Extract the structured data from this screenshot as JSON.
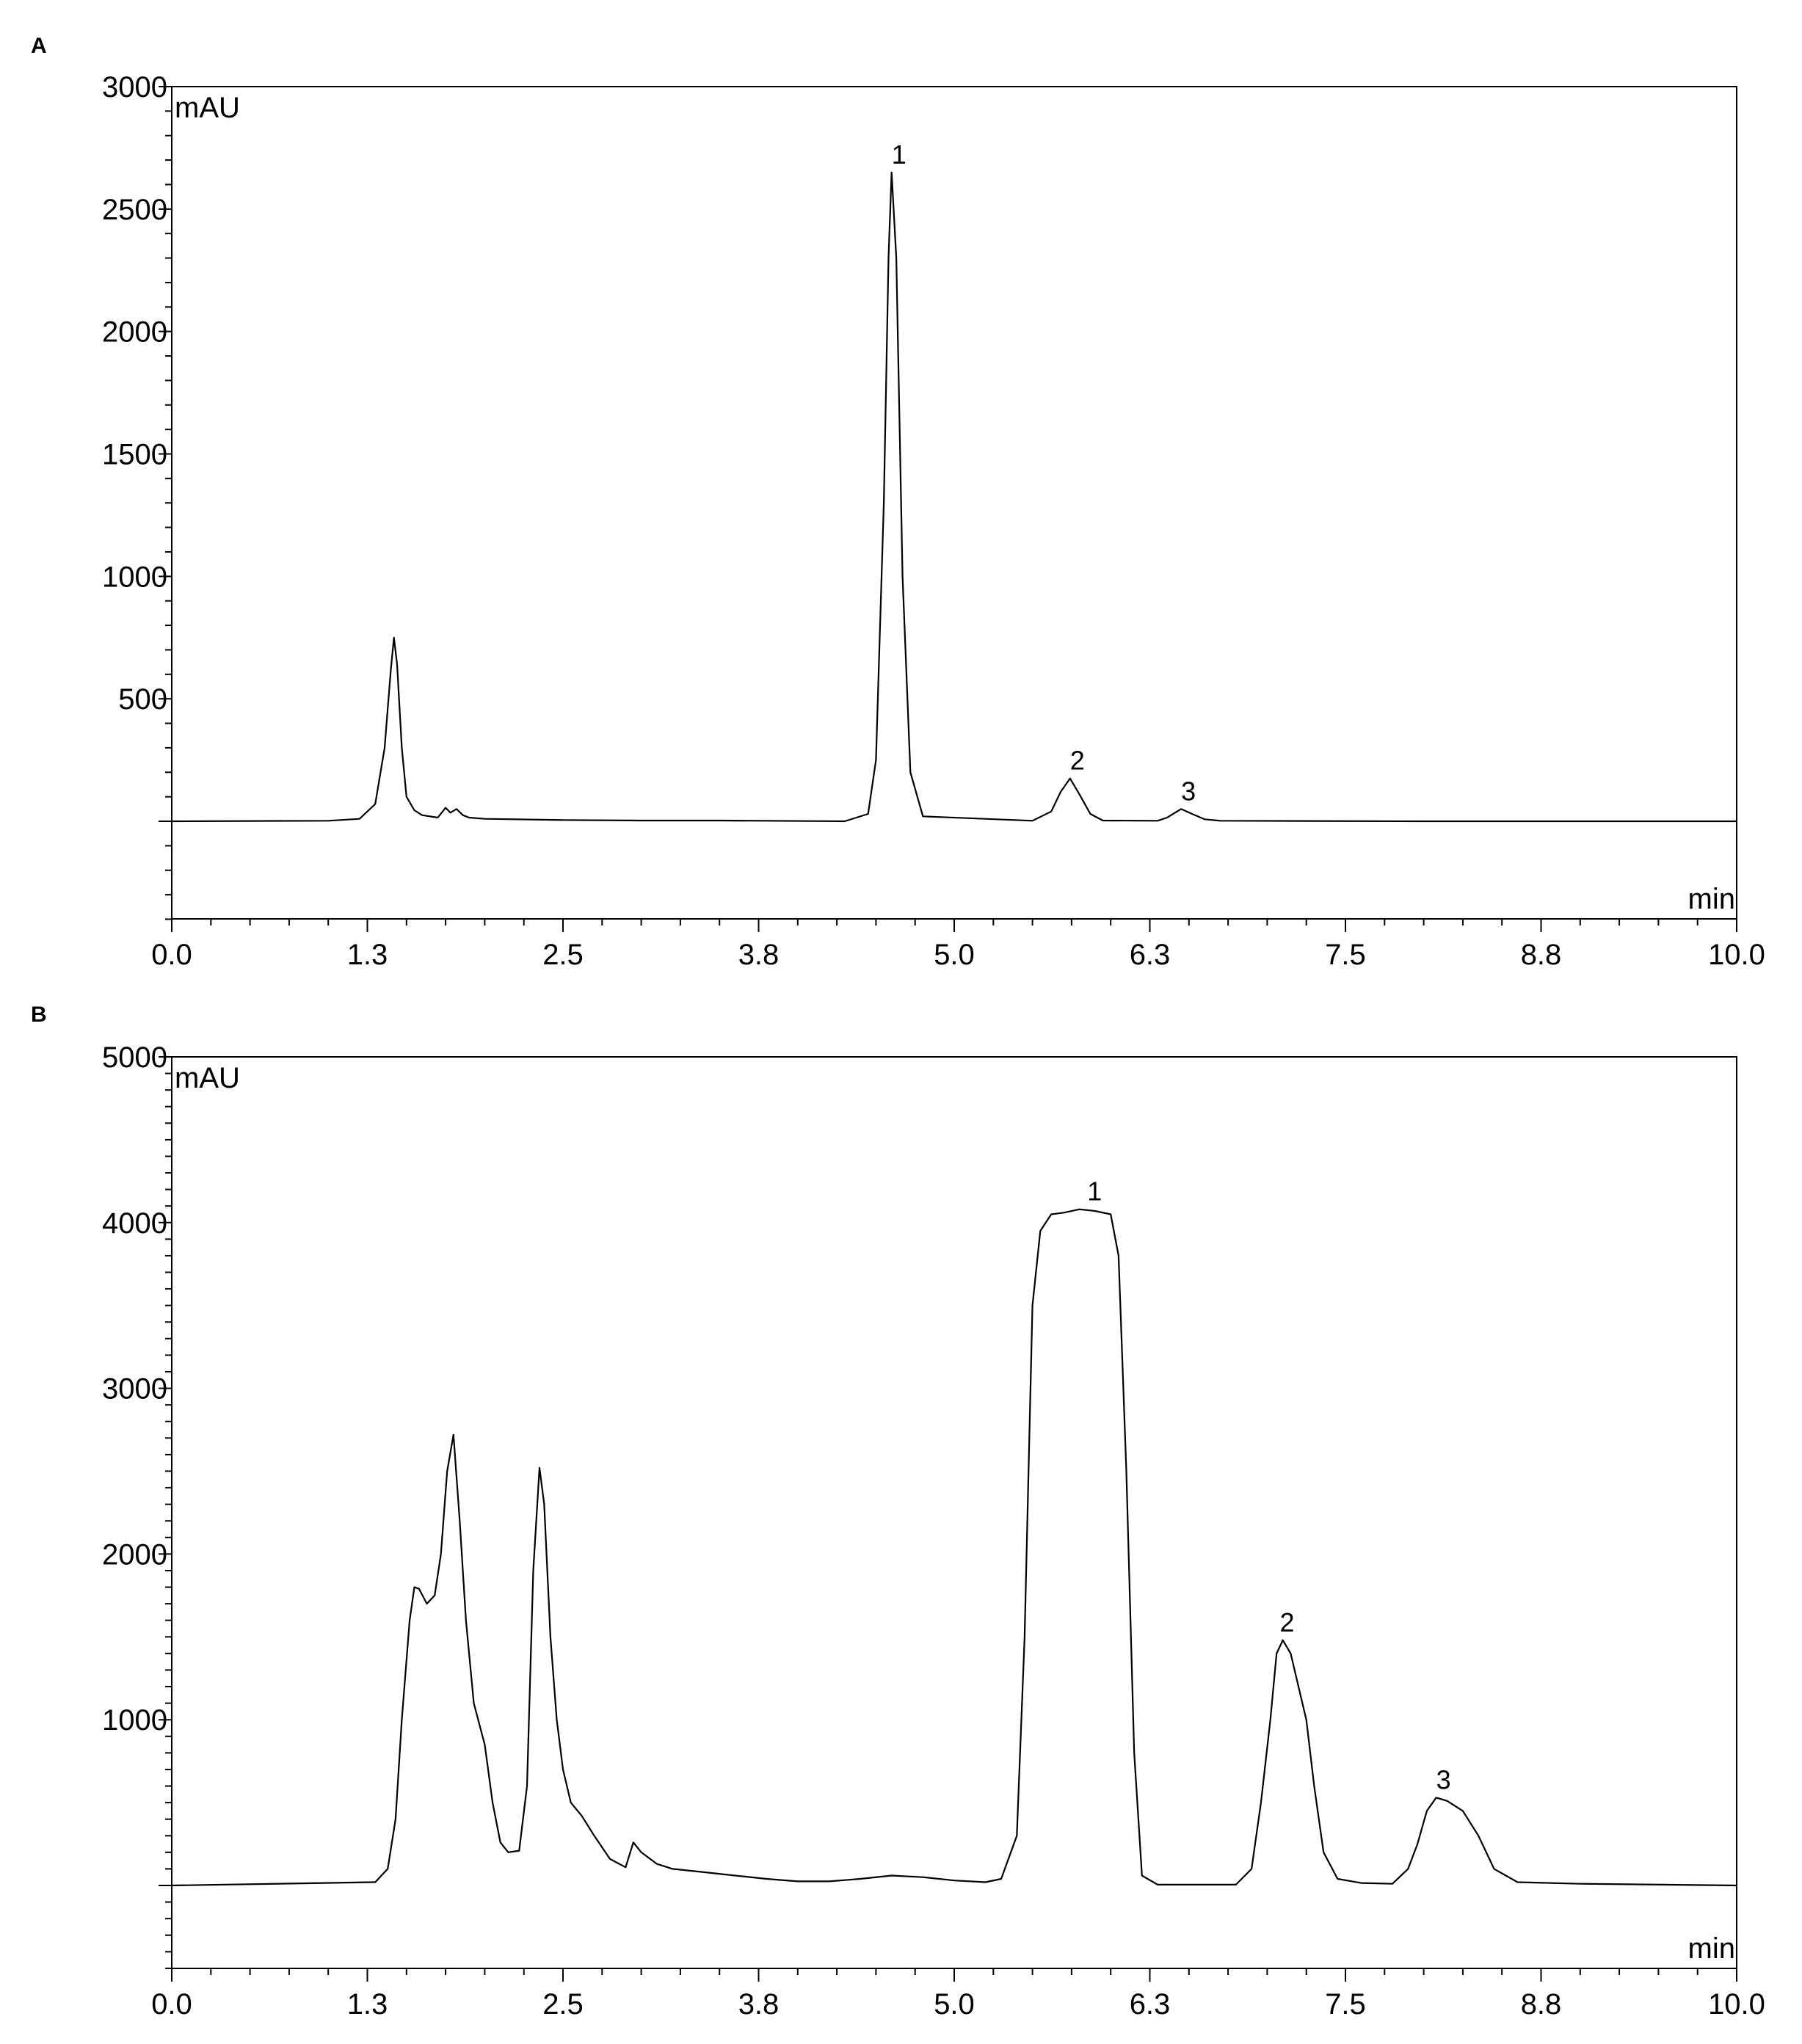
{
  "chart_data": [
    {
      "panel": "A",
      "type": "line",
      "ylabel": "mAU",
      "xlabel": "min",
      "xlim": [
        0.0,
        10.0
      ],
      "ylim": [
        -400,
        3000
      ],
      "x_ticks": [
        "0.0",
        "1.3",
        "2.5",
        "3.8",
        "5.0",
        "6.3",
        "7.5",
        "8.8",
        "10.0"
      ],
      "y_ticks": [
        "500",
        "1000",
        "1500",
        "2000",
        "2500",
        "3000"
      ],
      "grid": false,
      "peaks": [
        {
          "label": "1",
          "x": 4.6,
          "y": 2650
        },
        {
          "label": "2",
          "x": 5.74,
          "y": 175
        },
        {
          "label": "3",
          "x": 6.45,
          "y": 50
        }
      ],
      "series": [
        {
          "x": [
            0.0,
            1.0,
            1.2,
            1.3,
            1.36,
            1.4,
            1.42,
            1.44,
            1.47,
            1.5,
            1.55,
            1.6,
            1.7,
            1.75,
            1.78,
            1.82,
            1.86,
            1.9,
            2.0,
            2.5,
            3.0,
            3.5,
            4.3,
            4.45,
            4.5,
            4.55,
            4.58,
            4.6,
            4.63,
            4.67,
            4.72,
            4.8,
            5.5,
            5.62,
            5.68,
            5.74,
            5.8,
            5.87,
            5.95,
            6.3,
            6.36,
            6.45,
            6.52,
            6.6,
            6.7,
            8.0,
            10.0
          ],
          "y": [
            0,
            2,
            10,
            70,
            300,
            620,
            750,
            640,
            300,
            100,
            45,
            25,
            15,
            55,
            35,
            50,
            25,
            15,
            10,
            5,
            3,
            3,
            0,
            30,
            250,
            1300,
            2300,
            2650,
            2300,
            1000,
            200,
            20,
            2,
            40,
            120,
            175,
            110,
            30,
            3,
            2,
            15,
            50,
            30,
            8,
            2,
            0,
            0
          ]
        }
      ]
    },
    {
      "panel": "B",
      "type": "line",
      "ylabel": "mAU",
      "xlabel": "min",
      "xlim": [
        0.0,
        10.0
      ],
      "ylim": [
        -500,
        5000
      ],
      "x_ticks": [
        "0.0",
        "1.3",
        "2.5",
        "3.8",
        "5.0",
        "6.3",
        "7.5",
        "8.8",
        "10.0"
      ],
      "y_ticks": [
        "1000",
        "2000",
        "3000",
        "4000",
        "5000"
      ],
      "grid": false,
      "peaks": [
        {
          "label": "1",
          "x": 5.85,
          "y": 4080
        },
        {
          "label": "2",
          "x": 7.08,
          "y": 1480
        },
        {
          "label": "3",
          "x": 8.08,
          "y": 530
        }
      ],
      "series": [
        {
          "x": [
            0.0,
            1.3,
            1.38,
            1.43,
            1.47,
            1.52,
            1.55,
            1.58,
            1.63,
            1.68,
            1.72,
            1.76,
            1.8,
            1.84,
            1.88,
            1.93,
            2.0,
            2.05,
            2.1,
            2.15,
            2.22,
            2.27,
            2.31,
            2.35,
            2.38,
            2.42,
            2.46,
            2.5,
            2.55,
            2.62,
            2.7,
            2.8,
            2.9,
            2.95,
            3.0,
            3.1,
            3.2,
            3.4,
            3.6,
            3.8,
            4.0,
            4.2,
            4.4,
            4.6,
            4.8,
            5.0,
            5.2,
            5.3,
            5.4,
            5.45,
            5.5,
            5.55,
            5.62,
            5.7,
            5.8,
            5.9,
            6.0,
            6.05,
            6.1,
            6.15,
            6.2,
            6.3,
            6.8,
            6.9,
            6.96,
            7.02,
            7.06,
            7.1,
            7.15,
            7.2,
            7.25,
            7.3,
            7.36,
            7.45,
            7.6,
            7.8,
            7.9,
            7.96,
            8.02,
            8.08,
            8.15,
            8.25,
            8.35,
            8.45,
            8.6,
            9.0,
            10.0
          ],
          "y": [
            0,
            20,
            100,
            400,
            1000,
            1600,
            1800,
            1790,
            1700,
            1750,
            2000,
            2500,
            2720,
            2200,
            1600,
            1100,
            850,
            500,
            260,
            200,
            210,
            600,
            1900,
            2520,
            2300,
            1500,
            1000,
            700,
            500,
            420,
            300,
            160,
            110,
            260,
            200,
            130,
            100,
            80,
            60,
            40,
            25,
            25,
            40,
            60,
            50,
            30,
            20,
            40,
            300,
            1500,
            3500,
            3950,
            4050,
            4060,
            4080,
            4070,
            4050,
            3800,
            2500,
            800,
            60,
            5,
            5,
            100,
            500,
            1000,
            1400,
            1480,
            1400,
            1200,
            1000,
            600,
            200,
            40,
            15,
            10,
            100,
            250,
            450,
            530,
            510,
            450,
            300,
            100,
            20,
            10,
            0
          ]
        }
      ]
    }
  ]
}
